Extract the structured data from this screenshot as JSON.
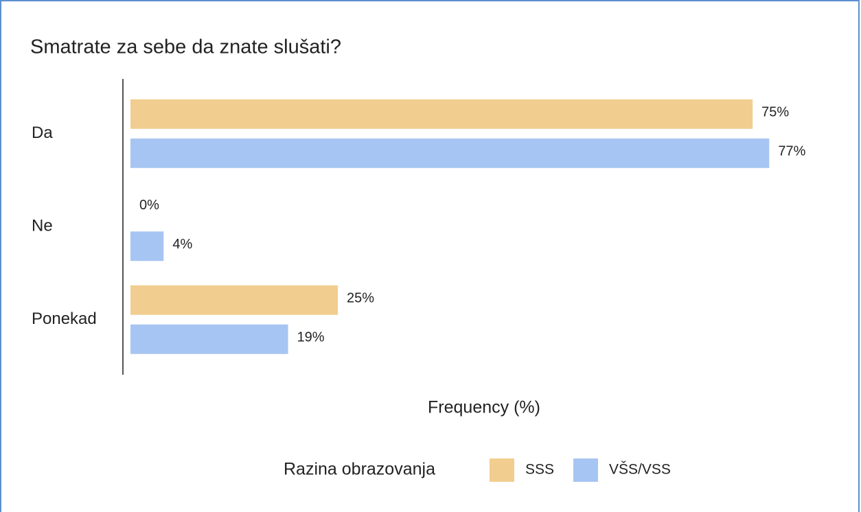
{
  "chart_data": {
    "type": "bar",
    "orientation": "horizontal",
    "title": "Smatrate za sebe da znate slušati?",
    "categories": [
      "Da",
      "Ne",
      "Ponekad"
    ],
    "series": [
      {
        "name": "SSS",
        "color": "#f1cd8f",
        "values": [
          75,
          0,
          25
        ],
        "value_labels": [
          "75%",
          "0%",
          "25%"
        ]
      },
      {
        "name": "VŠS/VSS",
        "color": "#a7c5f2",
        "values": [
          77,
          4,
          19
        ],
        "value_labels": [
          "77%",
          "4%",
          "19%"
        ]
      }
    ],
    "xlim": [
      0,
      85
    ],
    "x_label": "Frequency (%)",
    "legend_title": "Razina obrazovanja",
    "legend": "bottom"
  }
}
